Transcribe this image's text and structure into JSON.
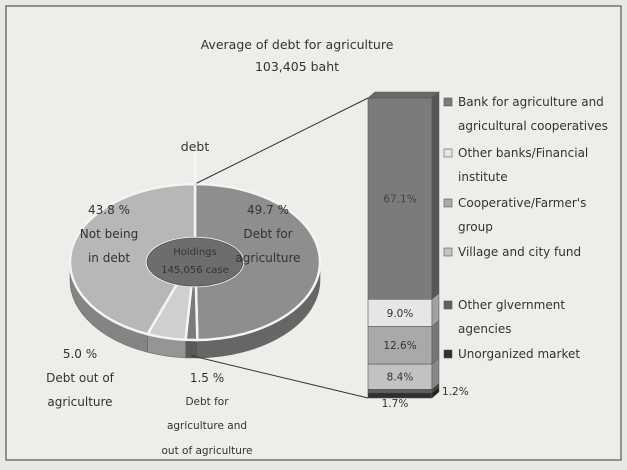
{
  "title_line1": "Average of debt for agriculture",
  "title_line2": "103,405 baht",
  "debt_label": "debt",
  "center_label": [
    "Holdings",
    "145,056 case"
  ],
  "chart_data": [
    {
      "type": "pie",
      "title": "",
      "slices": [
        {
          "value": 49.7,
          "label_pct": "49.7 %",
          "label": [
            "Debt for",
            "agriculture"
          ],
          "color": "#8e8e8e"
        },
        {
          "value": 1.5,
          "label_pct": "1.5 %",
          "label": [
            "Debt for",
            "agriculture and",
            "out of agriculture"
          ],
          "color": "#7a7a7a"
        },
        {
          "value": 5.0,
          "label_pct": "5.0 %",
          "label": [
            "Debt out of",
            "agriculture"
          ],
          "color": "#cfcfcf"
        },
        {
          "value": 43.8,
          "label_pct": "43.8 %",
          "label": [
            "Not being",
            "in debt"
          ],
          "color": "#b7b7b7"
        }
      ]
    },
    {
      "type": "bar",
      "stacked": true,
      "segments": [
        {
          "name": "Bank for agriculture and agricultural cooperatives",
          "legend": [
            "Bank for agriculture and",
            "agricultural cooperatives"
          ],
          "value": 67.1,
          "label": "67.1%",
          "color": "#7b7b7b"
        },
        {
          "name": "Other banks/Financial institute",
          "legend": [
            "Other banks/Financial",
            "institute"
          ],
          "value": 9.0,
          "label": "9.0%",
          "color": "#e6e6e6"
        },
        {
          "name": "Cooperative/Farmer's group",
          "legend": [
            "Cooperative/Farmer's",
            "group"
          ],
          "value": 12.6,
          "label": "12.6%",
          "color": "#a9a9a9"
        },
        {
          "name": "Village and city fund",
          "legend": [
            "Village and city fund"
          ],
          "value": 8.4,
          "label": "8.4%",
          "color": "#c2c2c2"
        },
        {
          "name": "Other glvernment agencies",
          "legend": [
            "Other glvernment",
            "agencies"
          ],
          "value": 1.2,
          "label": "1.2%",
          "color": "#5f5f5f"
        },
        {
          "name": "Unorganized market",
          "legend": [
            "Unorganized market"
          ],
          "value": 1.7,
          "label": "1.7%",
          "color": "#2f2f2f"
        }
      ]
    }
  ]
}
